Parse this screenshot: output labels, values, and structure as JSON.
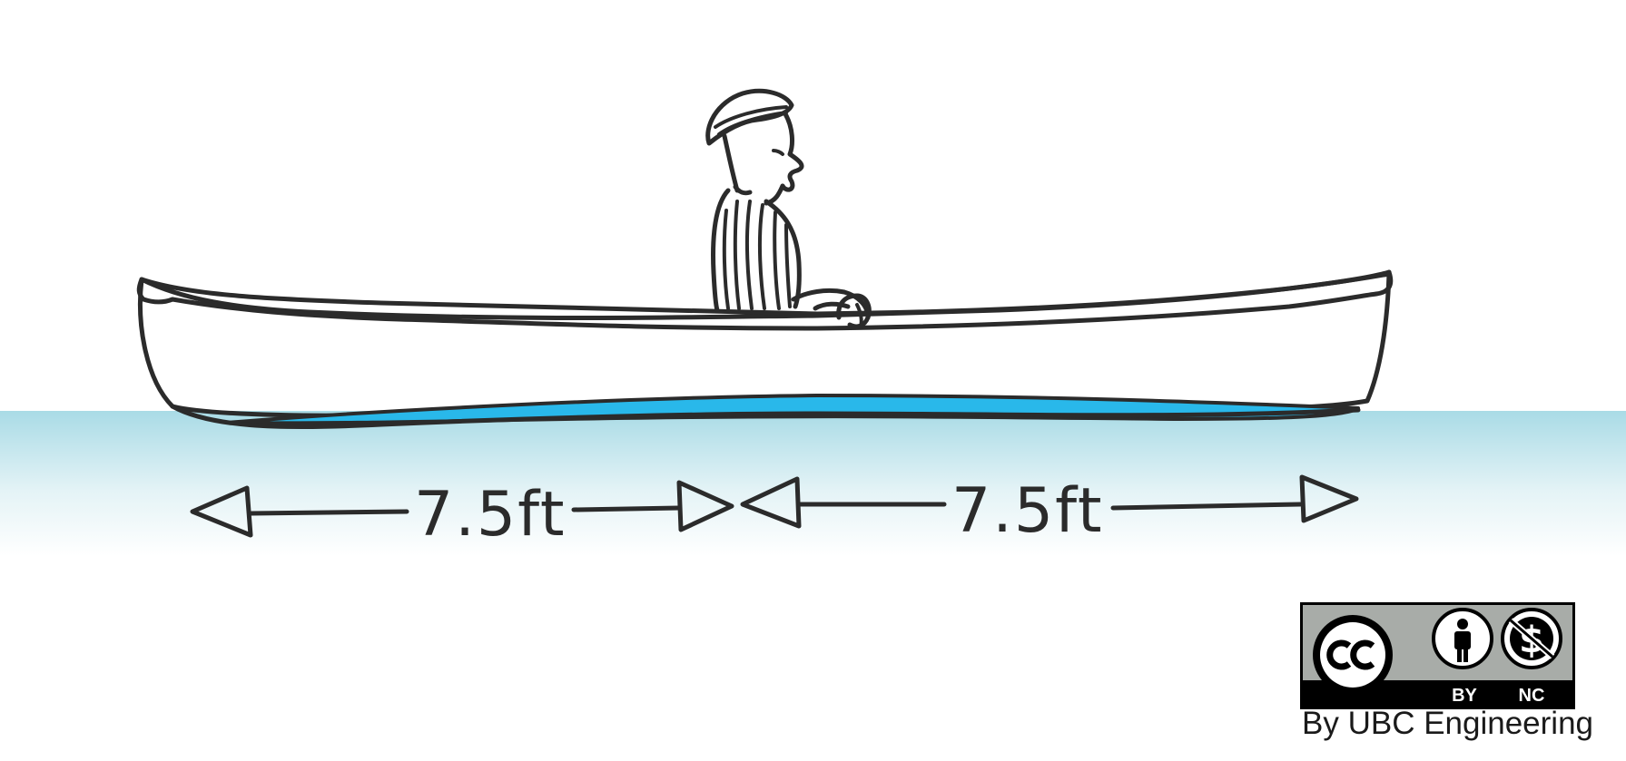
{
  "dimensions": {
    "left_label": "7.5ft",
    "right_label": "7.5ft"
  },
  "license": {
    "badge_by": "BY",
    "badge_nc": "NC",
    "credit": "By UBC Engineering"
  },
  "colors": {
    "water_top": "#a9dbe6",
    "water_bottom": "#ffffff",
    "hull_waterline": "#29b8ea",
    "ink": "#2b2b2b",
    "badge_gray": "#a8aca8"
  }
}
